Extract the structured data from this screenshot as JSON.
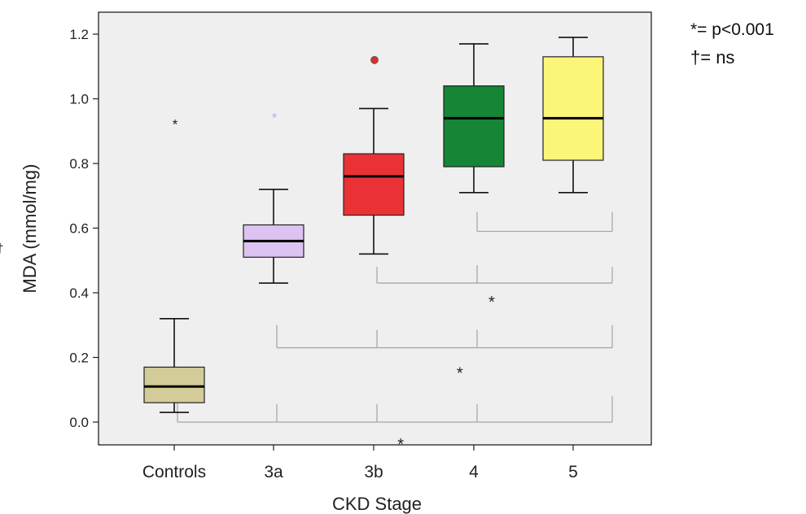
{
  "chart_data": {
    "type": "box",
    "xlabel": "CKD Stage",
    "ylabel": "MDA (mmol/mg)",
    "ylim": [
      -0.06,
      1.26
    ],
    "yticks": [
      "0.0",
      "0.2",
      "0.4",
      "0.6",
      "0.8",
      "1.0",
      "1.2"
    ],
    "ytick_values": [
      0,
      0.2,
      0.4,
      0.6,
      0.8,
      1.0,
      1.2
    ],
    "grid": false,
    "background": "#efefef",
    "categories": [
      "Controls",
      "3a",
      "3b",
      "4",
      "5"
    ],
    "boxes": [
      {
        "category": "Controls",
        "min": 0.03,
        "q1": 0.06,
        "median": 0.11,
        "q3": 0.17,
        "max": 0.32,
        "color": "#d3cc98",
        "outliers": [
          {
            "value": 0.93,
            "marker": "*",
            "color": "#222222"
          }
        ]
      },
      {
        "category": "3a",
        "min": 0.43,
        "q1": 0.51,
        "median": 0.56,
        "q3": 0.61,
        "max": 0.72,
        "color": "#dcc3f2",
        "outliers": [
          {
            "value": 0.95,
            "marker": "*",
            "color": "#c9a6ef"
          }
        ]
      },
      {
        "category": "3b",
        "min": 0.52,
        "q1": 0.64,
        "median": 0.76,
        "q3": 0.83,
        "max": 0.97,
        "color": "#ea3236",
        "outliers": [
          {
            "value": 1.12,
            "marker": "o",
            "color": "#d23030"
          }
        ]
      },
      {
        "category": "4",
        "min": 0.71,
        "q1": 0.79,
        "median": 0.94,
        "q3": 1.04,
        "max": 1.17,
        "color": "#168536",
        "outliers": []
      },
      {
        "category": "5",
        "min": 0.71,
        "q1": 0.81,
        "median": 0.94,
        "q3": 1.13,
        "max": 1.19,
        "color": "#fbf67a",
        "outliers": []
      }
    ],
    "comparisons": [
      {
        "from": 3,
        "to": 4,
        "ticks": [
          3,
          4
        ],
        "y": 0.59,
        "top": 0.65,
        "symbol": "†",
        "symbol_y": 0.54,
        "symbol_x": 4.29
      },
      {
        "from": 2,
        "to": 4,
        "ticks": [
          2,
          3,
          4
        ],
        "y": 0.43,
        "top": 0.48,
        "symbol": "*",
        "symbol_y": 0.37,
        "symbol_x": 3.18
      },
      {
        "from": 1,
        "to": 4,
        "ticks": [
          1,
          2,
          3,
          4
        ],
        "y": 0.23,
        "top": 0.3,
        "symbol": "*",
        "symbol_y": 0.15,
        "symbol_x": 2.86
      },
      {
        "from": 0,
        "to": 4,
        "ticks": [
          0,
          1,
          2,
          3,
          4
        ],
        "y": 0.0,
        "top": 0.08,
        "symbol": "*",
        "symbol_y": -0.07,
        "symbol_x": 2.27
      }
    ],
    "legend": [
      "*= p<0.001",
      "†= ns"
    ]
  }
}
